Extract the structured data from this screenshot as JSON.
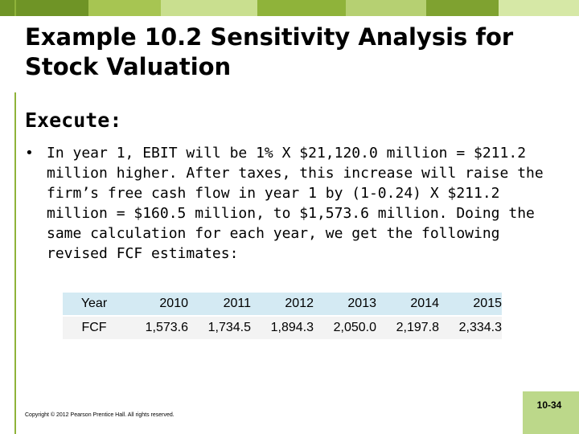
{
  "colors": {
    "band": [
      "#5a7a1f",
      "#8ca92c",
      "#b7d07a",
      "#a2c459",
      "#c6dc8b",
      "#6c8f24",
      "#d3e6a3"
    ],
    "vertical_line": "#8fb33a",
    "table_header_bg": "#d4eaf3",
    "table_row_bg": "#f3f3f3",
    "page_box_bg": "#bcd88a"
  },
  "slide": {
    "title": "Example 10.2  Sensitivity Analysis for Stock Valuation",
    "heading": "Execute:",
    "bullet_symbol": "•",
    "bullet_text": "In year 1, EBIT will be 1% X $21,120.0 million = $211.2 million higher.  After taxes, this increase will raise the firm’s free cash flow in year 1 by (1-0.24) X $211.2 million = $160.5 million, to $1,573.6 million.  Doing the same calculation for each year, we get the following revised FCF estimates:"
  },
  "table": {
    "header": [
      "Year",
      "2010",
      "2011",
      "2012",
      "2013",
      "2014",
      "2015"
    ],
    "row": [
      "FCF",
      "1,573.6",
      "1,734.5",
      "1,894.3",
      "2,050.0",
      "2,197.8",
      "2,334.3"
    ]
  },
  "footer": {
    "copyright": "Copyright © 2012 Pearson Prentice Hall. All rights reserved.",
    "page_number": "10-34"
  }
}
